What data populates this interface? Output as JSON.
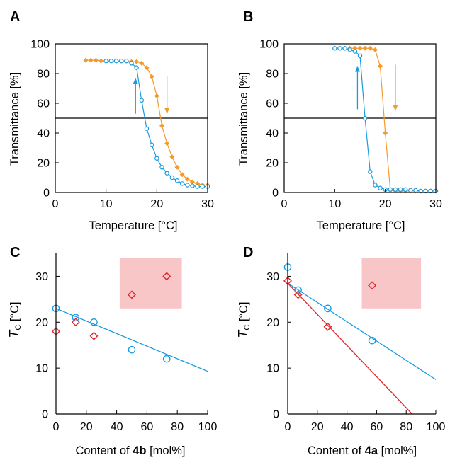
{
  "colors": {
    "blue": "#1a9be0",
    "orange": "#f39a2c",
    "red": "#e0242a",
    "pink": "#f9c6c8",
    "axis": "#000000"
  },
  "chart_data": [
    {
      "panel": "A",
      "type": "line",
      "xlabel": "Temperature [°C]",
      "ylabel": "Transmittance [%]",
      "xlim": [
        0,
        30
      ],
      "ylim": [
        0,
        100
      ],
      "xticks": [
        "0",
        "10",
        "20",
        "30"
      ],
      "yticks": [
        "0",
        "20",
        "40",
        "60",
        "80",
        "100"
      ],
      "hline": 50,
      "series": [
        {
          "color": "orange",
          "marker": "diamond",
          "x": [
            6,
            7,
            8,
            9,
            10,
            11,
            12,
            13,
            14,
            15,
            16,
            17,
            18,
            19,
            20,
            21,
            22,
            23,
            24,
            25,
            26,
            27,
            28,
            29,
            30
          ],
          "y": [
            89,
            89,
            89,
            88.5,
            88.5,
            88.5,
            88.5,
            88.5,
            88.5,
            88,
            88,
            87,
            84,
            78,
            65,
            45,
            33,
            24,
            17,
            12,
            9,
            7,
            6,
            5,
            5
          ]
        },
        {
          "color": "blue",
          "marker": "circle",
          "x": [
            10,
            11,
            12,
            13,
            14,
            15,
            16,
            17,
            18,
            19,
            20,
            21,
            22,
            23,
            24,
            25,
            26,
            27,
            28,
            29,
            30
          ],
          "y": [
            88.5,
            88.5,
            88.5,
            88.5,
            88.5,
            87,
            84,
            62,
            43,
            32,
            23,
            17,
            13,
            10,
            8,
            6,
            5,
            4.5,
            4,
            4,
            4
          ]
        }
      ],
      "arrows": [
        {
          "color": "blue",
          "direction": "up",
          "x": 15.8,
          "from": 53,
          "to": 77
        },
        {
          "color": "orange",
          "direction": "down",
          "x": 22,
          "from": 78,
          "to": 53
        }
      ]
    },
    {
      "panel": "B",
      "type": "line",
      "xlabel": "Temperature [°C]",
      "ylabel": "Transmittance [%]",
      "xlim": [
        0,
        30
      ],
      "ylim": [
        0,
        100
      ],
      "xticks": [
        "0",
        "10",
        "20",
        "30"
      ],
      "yticks": [
        "0",
        "20",
        "40",
        "60",
        "80",
        "100"
      ],
      "hline": 50,
      "series": [
        {
          "color": "orange",
          "marker": "diamond",
          "x": [
            10,
            11,
            12,
            13,
            14,
            15,
            16,
            17,
            18,
            19,
            20,
            21,
            22,
            23,
            24,
            25,
            26,
            27,
            28,
            29,
            30
          ],
          "y": [
            97,
            97,
            97,
            97,
            97,
            97,
            97,
            97,
            96,
            85,
            40,
            1.5,
            1,
            1,
            1,
            1,
            1,
            1,
            1,
            1,
            1
          ]
        },
        {
          "color": "blue",
          "marker": "circle",
          "x": [
            10,
            11,
            12,
            13,
            14,
            15,
            16,
            17,
            18,
            19,
            20,
            21,
            22,
            23,
            24,
            25,
            26,
            27,
            28,
            29,
            30
          ],
          "y": [
            97,
            97,
            97,
            96,
            95,
            92,
            50,
            14,
            5,
            3,
            2,
            2,
            2,
            2,
            2,
            1.5,
            1.5,
            1,
            1,
            1,
            1
          ]
        }
      ],
      "arrows": [
        {
          "color": "blue",
          "direction": "up",
          "x": 14.5,
          "from": 56,
          "to": 85
        },
        {
          "color": "orange",
          "direction": "down",
          "x": 22,
          "from": 86,
          "to": 55
        }
      ]
    },
    {
      "panel": "C",
      "type": "scatter",
      "xlabel_parts": [
        "Content of ",
        "4b",
        " [mol%]"
      ],
      "ylabel_parts": [
        "T",
        "C",
        " [°C]"
      ],
      "xlim": [
        0,
        100
      ],
      "ylim": [
        0,
        35
      ],
      "xticks": [
        "0",
        "20",
        "40",
        "60",
        "80",
        "100"
      ],
      "yticks": [
        "0",
        "10",
        "20",
        "30"
      ],
      "shaded_region": {
        "x": [
          42,
          83
        ],
        "y": [
          23,
          34
        ]
      },
      "series": [
        {
          "color": "blue",
          "marker": "circle",
          "x": [
            0,
            13,
            25,
            50,
            73
          ],
          "y": [
            23,
            21,
            20,
            14,
            12
          ]
        },
        {
          "color": "red",
          "marker": "diamond",
          "x": [
            0,
            13,
            25,
            50,
            73
          ],
          "y": [
            18,
            20,
            17,
            26,
            30
          ]
        }
      ],
      "fit_lines": [
        {
          "color": "blue",
          "x": [
            0,
            100
          ],
          "y": [
            23,
            9.3
          ]
        }
      ]
    },
    {
      "panel": "D",
      "type": "scatter",
      "xlabel_parts": [
        "Content of ",
        "4a",
        " [mol%]"
      ],
      "ylabel_parts": [
        "T",
        "C",
        " [°C]"
      ],
      "xlim": [
        0,
        100
      ],
      "ylim": [
        0,
        35
      ],
      "xticks": [
        "0",
        "20",
        "40",
        "60",
        "80",
        "100"
      ],
      "yticks": [
        "0",
        "10",
        "20",
        "30"
      ],
      "shaded_region": {
        "x": [
          50,
          90
        ],
        "y": [
          23,
          34
        ]
      },
      "series": [
        {
          "color": "blue",
          "marker": "circle",
          "x": [
            0,
            7,
            27,
            57
          ],
          "y": [
            32,
            27,
            23,
            16
          ]
        },
        {
          "color": "red",
          "marker": "diamond",
          "x": [
            0,
            7,
            27,
            57
          ],
          "y": [
            29,
            26,
            19,
            28
          ]
        }
      ],
      "fit_lines": [
        {
          "color": "blue",
          "x": [
            0,
            100
          ],
          "y": [
            28.5,
            7.5
          ]
        },
        {
          "color": "red",
          "x": [
            0,
            84
          ],
          "y": [
            28.5,
            0
          ]
        }
      ]
    }
  ]
}
